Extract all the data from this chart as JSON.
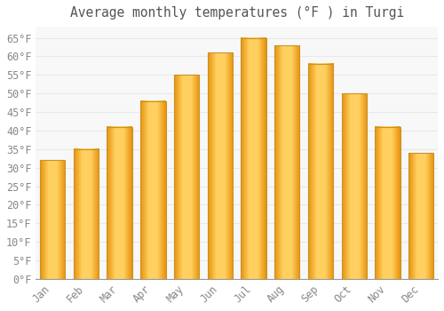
{
  "title": "Average monthly temperatures (°F ) in Turgi",
  "months": [
    "Jan",
    "Feb",
    "Mar",
    "Apr",
    "May",
    "Jun",
    "Jul",
    "Aug",
    "Sep",
    "Oct",
    "Nov",
    "Dec"
  ],
  "values": [
    32,
    35,
    41,
    48,
    55,
    61,
    65,
    63,
    58,
    50,
    41,
    34
  ],
  "bar_color_main": "#FFA500",
  "bar_color_light": "#FFD060",
  "bar_color_edge": "#C8922A",
  "background_color": "#FFFFFF",
  "plot_bg_color": "#F8F8F8",
  "grid_color": "#E8E8E8",
  "text_color": "#888888",
  "title_color": "#555555",
  "ylim": [
    0,
    68
  ],
  "yticks": [
    0,
    5,
    10,
    15,
    20,
    25,
    30,
    35,
    40,
    45,
    50,
    55,
    60,
    65
  ],
  "title_fontsize": 10.5,
  "tick_fontsize": 8.5,
  "bar_width": 0.75
}
